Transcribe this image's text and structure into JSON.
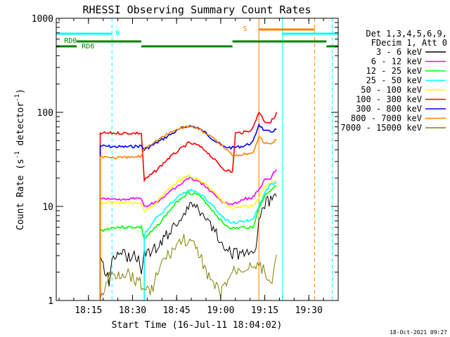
{
  "chart_data": {
    "type": "line",
    "title": "RHESSI Observing Summary Count Rates",
    "xlabel": "Start Time (16-Jul-11 18:04:02)",
    "ylabel": "Count Rate (s⁻¹ detector⁻¹)",
    "ylabel_parts": {
      "main": "Count Rate (s",
      "exp1": "-1",
      "mid": " detector",
      "exp2": "-1",
      "end": ")"
    },
    "footer": "18-Oct-2021 09:27",
    "x_range": [
      "18:04:02",
      "19:40:00"
    ],
    "x_ticks": [
      "18:15",
      "18:30",
      "18:45",
      "19:00",
      "19:15",
      "19:30"
    ],
    "y_scale": "log",
    "ylim": [
      1,
      1000
    ],
    "y_ticks": [
      "1",
      "10",
      "100",
      "1000"
    ],
    "legend_placement": "right",
    "legend_header": [
      "Det 1,3,4,5,6,9,",
      "FDecim 1, Att 0"
    ],
    "series": [
      {
        "name": "3 - 6 keV",
        "color": "#000000",
        "points": [
          [
            "18:19",
            3
          ],
          [
            "18:22",
            1.6
          ],
          [
            "18:23",
            3
          ],
          [
            "18:32",
            3
          ],
          [
            "18:33",
            1.8
          ],
          [
            "18:34",
            3.2
          ],
          [
            "18:38",
            3.6
          ],
          [
            "18:42",
            5
          ],
          [
            "18:46",
            7.5
          ],
          [
            "18:49",
            10
          ],
          [
            "18:52",
            10
          ],
          [
            "18:55",
            8
          ],
          [
            "18:58",
            5.5
          ],
          [
            "19:01",
            4
          ],
          [
            "19:04",
            3.2
          ],
          [
            "19:08",
            3
          ],
          [
            "19:11",
            3
          ],
          [
            "19:12",
            4
          ],
          [
            "19:14",
            10
          ],
          [
            "19:16",
            11
          ],
          [
            "19:18",
            12
          ],
          [
            "19:19",
            13
          ]
        ]
      },
      {
        "name": "6 - 12 keV",
        "color": "#ff00ff",
        "points": [
          [
            "18:19",
            12
          ],
          [
            "18:24",
            12
          ],
          [
            "18:27",
            12
          ],
          [
            "18:33",
            12
          ],
          [
            "18:34",
            10
          ],
          [
            "18:38",
            11
          ],
          [
            "18:42",
            13.5
          ],
          [
            "18:46",
            17
          ],
          [
            "18:49",
            20
          ],
          [
            "18:52",
            19
          ],
          [
            "18:55",
            16
          ],
          [
            "18:58",
            13
          ],
          [
            "19:01",
            11
          ],
          [
            "19:04",
            10.5
          ],
          [
            "19:08",
            12
          ],
          [
            "19:11",
            12.5
          ],
          [
            "19:13",
            15
          ],
          [
            "19:15",
            19
          ],
          [
            "19:17",
            20
          ],
          [
            "19:18",
            23
          ],
          [
            "19:19",
            24
          ]
        ]
      },
      {
        "name": "12 - 25 keV",
        "color": "#00ff00",
        "points": [
          [
            "18:19",
            5.5
          ],
          [
            "18:24",
            6
          ],
          [
            "18:28",
            6
          ],
          [
            "18:33",
            6
          ],
          [
            "18:34",
            4.5
          ],
          [
            "18:38",
            6
          ],
          [
            "18:42",
            8.5
          ],
          [
            "18:46",
            12
          ],
          [
            "18:49",
            14
          ],
          [
            "18:52",
            13.5
          ],
          [
            "18:55",
            11
          ],
          [
            "18:58",
            8.5
          ],
          [
            "19:01",
            6.5
          ],
          [
            "19:04",
            5.8
          ],
          [
            "19:08",
            6
          ],
          [
            "19:11",
            6
          ],
          [
            "19:13",
            9.5
          ],
          [
            "19:15",
            13
          ],
          [
            "19:17",
            15
          ],
          [
            "19:19",
            17
          ]
        ]
      },
      {
        "name": "25 - 50 keV",
        "color": "#00ffff",
        "points": [
          [
            "18:34",
            5
          ],
          [
            "18:38",
            7.5
          ],
          [
            "18:42",
            10
          ],
          [
            "18:46",
            13
          ],
          [
            "18:49",
            15
          ],
          [
            "18:52",
            14
          ],
          [
            "18:55",
            12
          ],
          [
            "18:58",
            9.5
          ],
          [
            "19:01",
            7.5
          ],
          [
            "19:04",
            6.6
          ],
          [
            "19:08",
            7
          ],
          [
            "19:11",
            7.2
          ],
          [
            "19:13",
            10
          ],
          [
            "19:15",
            14
          ],
          [
            "19:17",
            17
          ],
          [
            "19:19",
            18
          ]
        ]
      },
      {
        "name": "50 - 100 keV",
        "color": "#ffff00",
        "points": [
          [
            "18:19",
            11
          ],
          [
            "18:24",
            11
          ],
          [
            "18:28",
            11
          ],
          [
            "18:33",
            11
          ],
          [
            "18:34",
            9
          ],
          [
            "18:38",
            11
          ],
          [
            "18:42",
            15
          ],
          [
            "18:46",
            19
          ],
          [
            "18:49",
            21
          ],
          [
            "18:52",
            20
          ],
          [
            "18:55",
            17
          ],
          [
            "18:58",
            14
          ],
          [
            "19:01",
            11
          ],
          [
            "19:04",
            9.5
          ],
          [
            "19:08",
            10
          ],
          [
            "19:11",
            10
          ],
          [
            "19:13",
            12.5
          ],
          [
            "19:15",
            16
          ],
          [
            "19:17",
            18
          ],
          [
            "19:19",
            19
          ]
        ]
      },
      {
        "name": "100 - 300 keV",
        "color": "#ff0000",
        "points": [
          [
            "18:19",
            60
          ],
          [
            "18:24",
            60
          ],
          [
            "18:28",
            60
          ],
          [
            "18:33",
            60
          ],
          [
            "18:34",
            19
          ],
          [
            "18:38",
            24
          ],
          [
            "18:42",
            32
          ],
          [
            "18:46",
            40
          ],
          [
            "18:49",
            47
          ],
          [
            "18:52",
            45
          ],
          [
            "18:55",
            39
          ],
          [
            "18:58",
            31
          ],
          [
            "19:01",
            25
          ],
          [
            "19:04",
            23
          ],
          [
            "19:05",
            60
          ],
          [
            "19:09",
            62
          ],
          [
            "19:11",
            68
          ],
          [
            "19:13",
            102
          ],
          [
            "19:15",
            80
          ],
          [
            "19:17",
            78
          ],
          [
            "19:19",
            98
          ]
        ]
      },
      {
        "name": "300 - 800 keV",
        "color": "#0000ff",
        "points": [
          [
            "18:19",
            44
          ],
          [
            "18:24",
            43
          ],
          [
            "18:28",
            43
          ],
          [
            "18:33",
            44
          ],
          [
            "18:34",
            40
          ],
          [
            "18:38",
            47
          ],
          [
            "18:42",
            56
          ],
          [
            "18:46",
            66
          ],
          [
            "18:49",
            72
          ],
          [
            "18:52",
            69
          ],
          [
            "18:55",
            60
          ],
          [
            "18:58",
            50
          ],
          [
            "19:01",
            43
          ],
          [
            "19:04",
            42
          ],
          [
            "19:08",
            44
          ],
          [
            "19:11",
            48
          ],
          [
            "19:13",
            75
          ],
          [
            "19:15",
            63
          ],
          [
            "19:17",
            62
          ],
          [
            "19:19",
            66
          ]
        ]
      },
      {
        "name": "800 - 7000 keV",
        "color": "#ff8000",
        "points": [
          [
            "18:19",
            34
          ],
          [
            "18:24",
            33
          ],
          [
            "18:28",
            33
          ],
          [
            "18:33",
            34
          ],
          [
            "18:34",
            42
          ],
          [
            "18:38",
            50
          ],
          [
            "18:42",
            59
          ],
          [
            "18:46",
            68
          ],
          [
            "18:49",
            71
          ],
          [
            "18:52",
            68
          ],
          [
            "18:55",
            60
          ],
          [
            "18:58",
            51
          ],
          [
            "19:01",
            43
          ],
          [
            "19:04",
            35
          ],
          [
            "19:08",
            36
          ],
          [
            "19:11",
            38
          ],
          [
            "19:13",
            55
          ],
          [
            "19:15",
            47
          ],
          [
            "19:17",
            46
          ],
          [
            "19:19",
            52
          ]
        ]
      },
      {
        "name": "7000 - 15000 keV",
        "color": "#808000",
        "points": [
          [
            "18:19",
            1
          ],
          [
            "18:22",
            1.8
          ],
          [
            "18:28",
            2
          ],
          [
            "18:33",
            1.5
          ],
          [
            "18:36",
            1.2
          ],
          [
            "18:40",
            2.5
          ],
          [
            "18:44",
            3.5
          ],
          [
            "18:47",
            4.5
          ],
          [
            "18:50",
            4
          ],
          [
            "18:53",
            3
          ],
          [
            "18:57",
            1.5
          ],
          [
            "19:00",
            1.2
          ],
          [
            "19:04",
            2
          ],
          [
            "19:08",
            2.2
          ],
          [
            "19:12",
            2.5
          ],
          [
            "19:15",
            2
          ],
          [
            "19:17",
            1.5
          ],
          [
            "19:19",
            2.8
          ]
        ]
      }
    ],
    "flags": [
      {
        "label": "RD0",
        "color": "#008000",
        "label_at": "18:06",
        "segments": [
          [
            "18:04:02",
            "18:11",
            "lower"
          ],
          [
            "18:11",
            "18:33",
            "upper"
          ],
          [
            "18:33",
            "19:04",
            "lower"
          ],
          [
            "19:04",
            "19:36",
            "upper"
          ],
          [
            "19:36",
            "19:40",
            "lower"
          ]
        ]
      },
      {
        "label": "RD6",
        "color": "#008000",
        "label_at": "18:12",
        "segments": []
      },
      {
        "label": "N",
        "color": "#00ffff",
        "label_at": "18:23",
        "segments": [
          [
            "18:04:02",
            "18:23"
          ],
          [
            "19:21",
            "19:40"
          ]
        ]
      },
      {
        "label": "S",
        "color": "#ff8000",
        "label_at": "19:09",
        "segments": [
          [
            "19:13",
            "19:32"
          ]
        ]
      }
    ],
    "vlines": [
      {
        "at": "18:23",
        "color": "#00ffff",
        "style": "dashed"
      },
      {
        "at": "19:21",
        "color": "#00ffff",
        "style": "solid"
      },
      {
        "at": "19:38",
        "color": "#00ffff",
        "style": "dashed"
      },
      {
        "at": "19:13",
        "color": "#ff8000",
        "style": "solid"
      },
      {
        "at": "19:32",
        "color": "#ff8000",
        "style": "dashed"
      }
    ]
  }
}
